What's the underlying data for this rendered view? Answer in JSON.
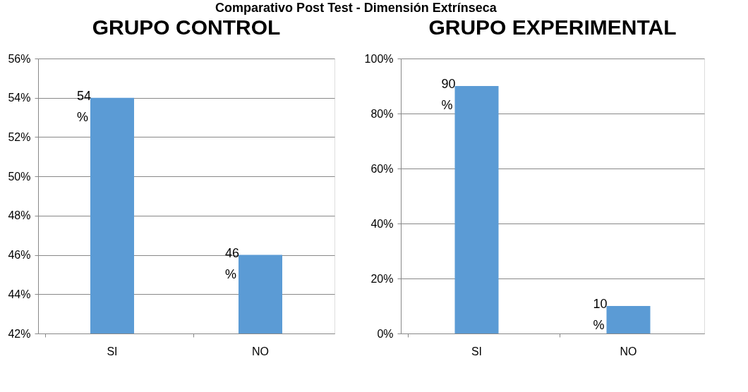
{
  "chart_data": [
    {
      "type": "bar",
      "title": "GRUPO CONTROL",
      "annotations": [
        "Comparativo Post Test - Dimensión Extrínseca"
      ],
      "categories": [
        "SI",
        "NO"
      ],
      "values": [
        54,
        46
      ],
      "color": "#5b9bd5",
      "value_labels": [
        "54 %",
        "46 %"
      ],
      "ylim": [
        42,
        56
      ],
      "yticks": [
        {
          "value": 42,
          "label": "42%"
        },
        {
          "value": 44,
          "label": "44%"
        },
        {
          "value": 46,
          "label": "46%"
        },
        {
          "value": 48,
          "label": "48%"
        },
        {
          "value": 50,
          "label": "50%"
        },
        {
          "value": 52,
          "label": "52%"
        },
        {
          "value": 54,
          "label": "54%"
        },
        {
          "value": 56,
          "label": "56%"
        }
      ],
      "grid": "y"
    },
    {
      "type": "bar",
      "title": "GRUPO EXPERIMENTAL",
      "categories": [
        "SI",
        "NO"
      ],
      "values": [
        90,
        10
      ],
      "color": "#5b9bd5",
      "value_labels": [
        "90 %",
        "10 %"
      ],
      "ylim": [
        0,
        100
      ],
      "yticks": [
        {
          "value": 0,
          "label": "0%"
        },
        {
          "value": 20,
          "label": "20%"
        },
        {
          "value": 40,
          "label": "40%"
        },
        {
          "value": 60,
          "label": "60%"
        },
        {
          "value": 80,
          "label": "80%"
        },
        {
          "value": 100,
          "label": "100%"
        }
      ],
      "grid": "y"
    }
  ]
}
